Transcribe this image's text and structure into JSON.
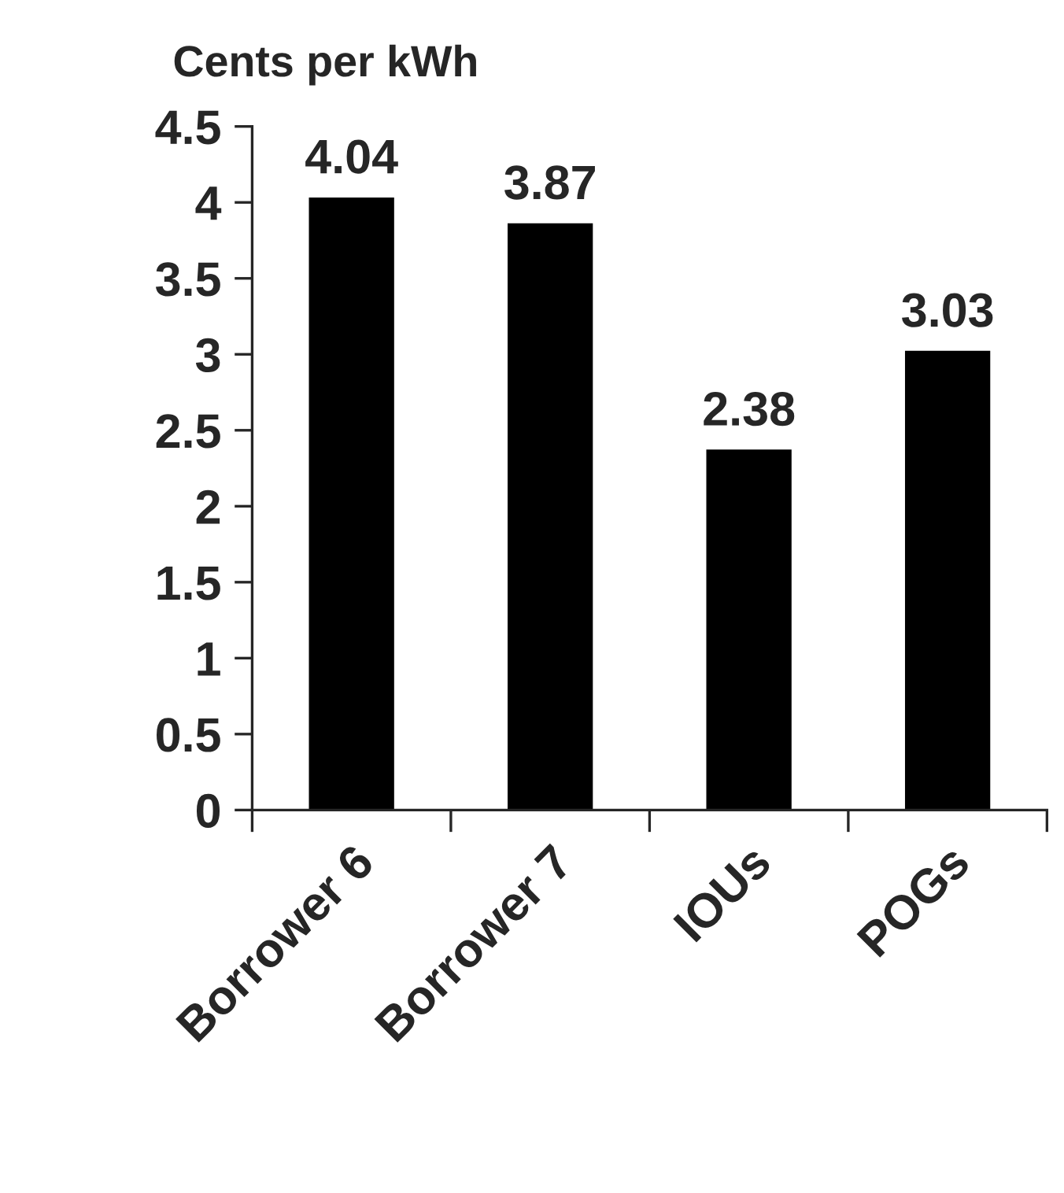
{
  "chart_data": {
    "type": "bar",
    "ylabel": "Cents per kWh",
    "categories": [
      "Borrower 6",
      "Borrower 7",
      "IOUs",
      "POGs"
    ],
    "values": [
      4.04,
      3.87,
      2.38,
      3.03
    ],
    "color": "#000000",
    "ylim": [
      0,
      4.5
    ],
    "yticks": [
      0,
      0.5,
      1,
      1.5,
      2,
      2.5,
      3,
      3.5,
      4,
      4.5
    ],
    "data_labels": true,
    "grid": false,
    "legend": false
  }
}
